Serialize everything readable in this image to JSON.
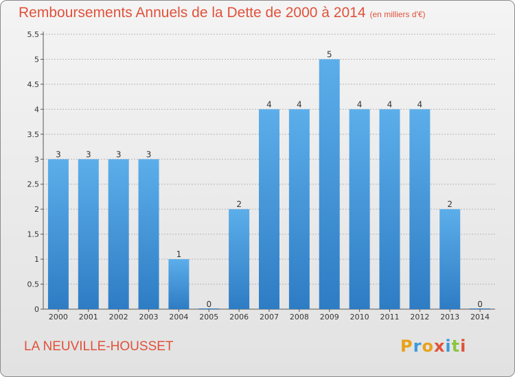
{
  "header": {
    "title": "Remboursements Annuels de la Dette de 2000 à 2014",
    "subtitle": "(en milliers d'€)"
  },
  "footer": {
    "place": "LA NEUVILLE-HOUSSET",
    "logo": [
      "P",
      "r",
      "o",
      "x",
      "i",
      "t",
      "i"
    ],
    "logo_colors": [
      "#e8a21a",
      "#3a9ad9",
      "#e8a21a",
      "#e0513a",
      "#3a9ad9",
      "#8cc63f",
      "#e0513a"
    ]
  },
  "colors": {
    "bar_light": "#5caeea",
    "bar_dark": "#2e7cc4",
    "title": "#e0513a",
    "grid": "#b5b5b5"
  },
  "chart_data": {
    "type": "bar",
    "categories": [
      "2000",
      "2001",
      "2002",
      "2003",
      "2004",
      "2005",
      "2006",
      "2007",
      "2008",
      "2009",
      "2010",
      "2011",
      "2012",
      "2013",
      "2014"
    ],
    "values": [
      3,
      3,
      3,
      3,
      1,
      0,
      2,
      4,
      4,
      5,
      4,
      4,
      4,
      2,
      0
    ],
    "data_labels": [
      "3",
      "3",
      "3",
      "3",
      "1",
      "0",
      "2",
      "4",
      "4",
      "5",
      "4",
      "4",
      "4",
      "2",
      "0"
    ],
    "y_ticks": [
      "0",
      "0.5",
      "1",
      "1.5",
      "2",
      "2.5",
      "3",
      "3.5",
      "4",
      "4.5",
      "5",
      "5.5"
    ],
    "ylim": [
      0,
      5.5
    ],
    "grid": true
  }
}
